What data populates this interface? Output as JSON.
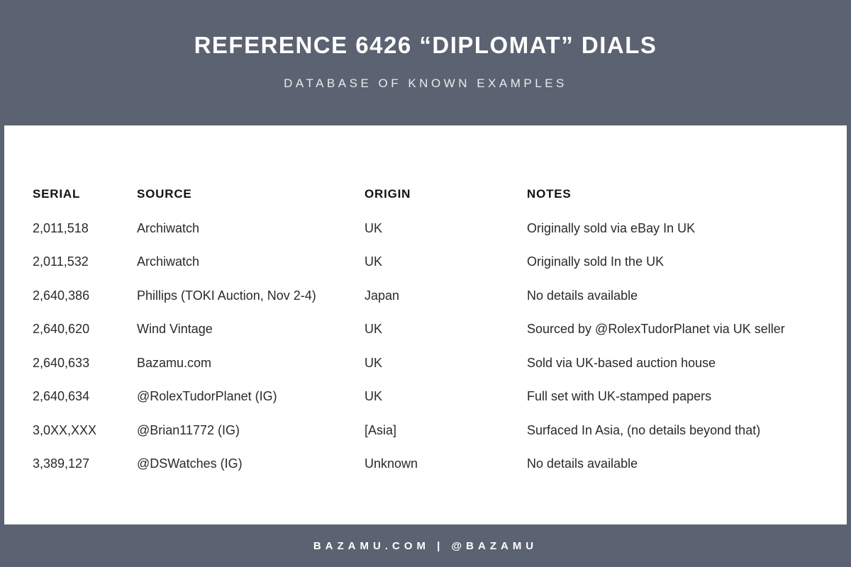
{
  "colors": {
    "background": "#5b6271",
    "card": "#ffffff",
    "body_text": "#2a2a2a",
    "header_text": "#ffffff"
  },
  "header": {
    "title": "REFERENCE 6426 “DIPLOMAT” DIALS",
    "subtitle": "DATABASE OF KNOWN EXAMPLES"
  },
  "table": {
    "columns": [
      "SERIAL",
      "SOURCE",
      "ORIGIN",
      "NOTES"
    ],
    "row_keys": [
      "serial",
      "source",
      "origin",
      "notes"
    ],
    "rows": [
      {
        "serial": "2,011,518",
        "source": "Archiwatch",
        "origin": "UK",
        "notes": "Originally sold via eBay In UK"
      },
      {
        "serial": "2,011,532",
        "source": "Archiwatch",
        "origin": "UK",
        "notes": "Originally sold In the UK"
      },
      {
        "serial": "2,640,386",
        "source": "Phillips (TOKI Auction, Nov 2-4)",
        "origin": "Japan",
        "notes": "No details available"
      },
      {
        "serial": "2,640,620",
        "source": "Wind Vintage",
        "origin": "UK",
        "notes": "Sourced by @RolexTudorPlanet via UK seller"
      },
      {
        "serial": "2,640,633",
        "source": "Bazamu.com",
        "origin": "UK",
        "notes": "Sold via UK-based auction house"
      },
      {
        "serial": "2,640,634",
        "source": "@RolexTudorPlanet (IG)",
        "origin": "UK",
        "notes": "Full set with UK-stamped papers"
      },
      {
        "serial": "3,0XX,XXX",
        "source": "@Brian11772 (IG)",
        "origin": "[Asia]",
        "notes": "Surfaced In Asia, (no details beyond that)"
      },
      {
        "serial": "3,389,127",
        "source": "@DSWatches (IG)",
        "origin": "Unknown",
        "notes": "No details available"
      }
    ]
  },
  "footer": {
    "text": "BAZAMU.COM  |  @BAZAMU"
  }
}
